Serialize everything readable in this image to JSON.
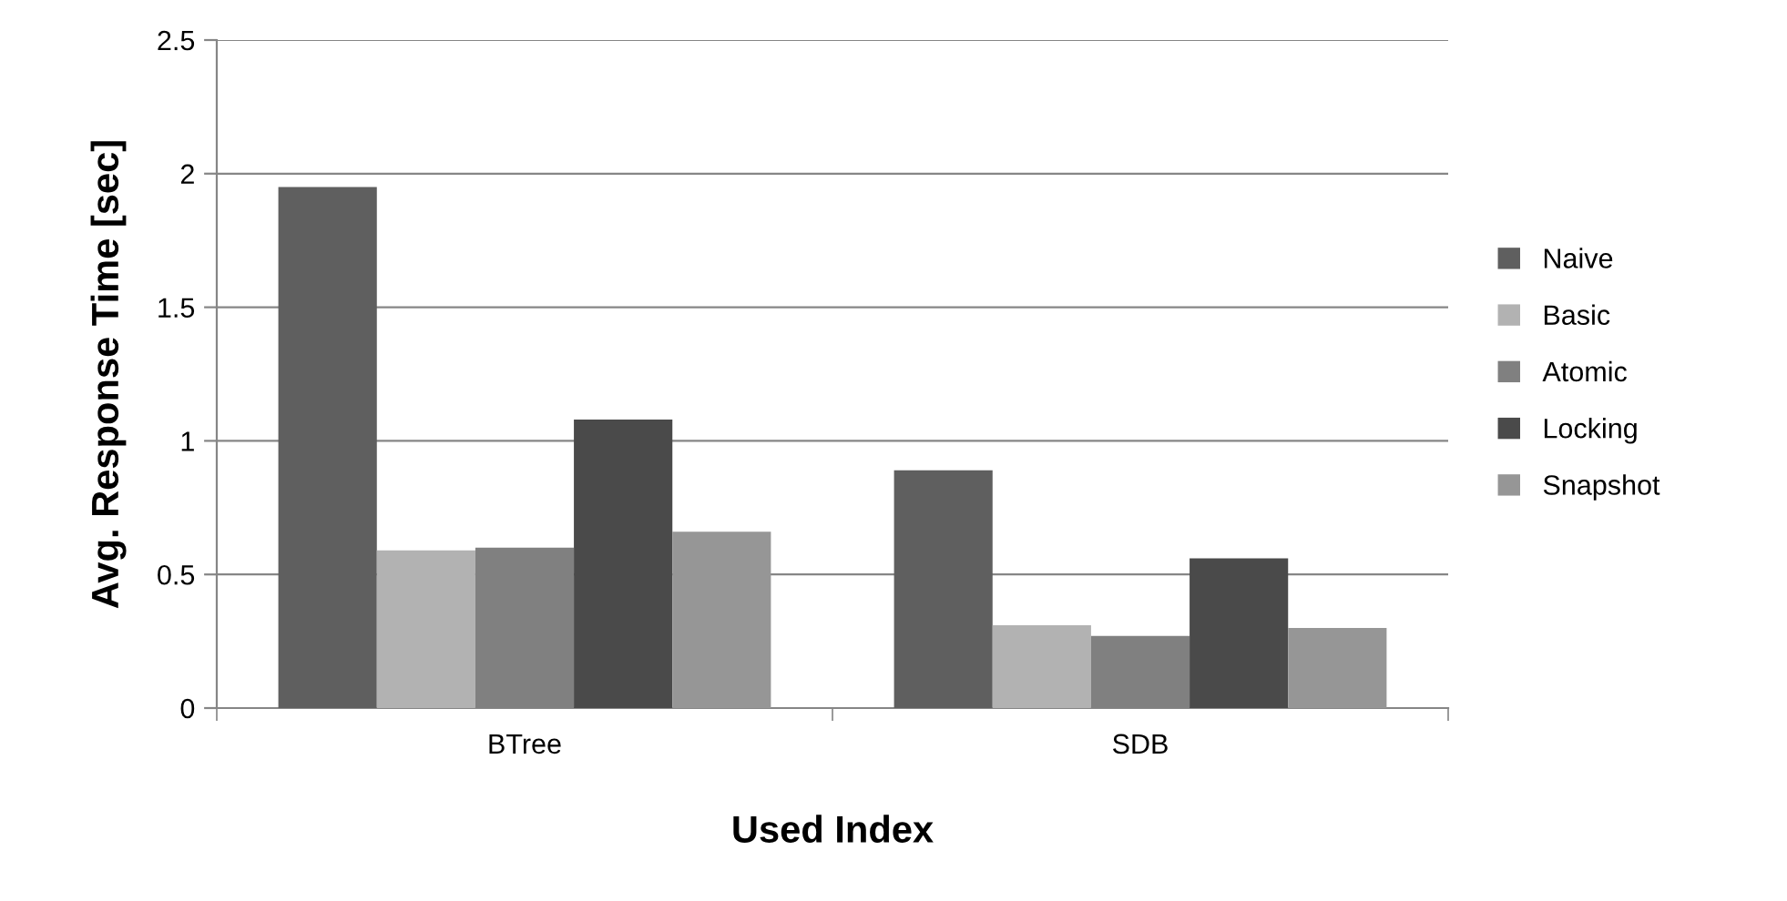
{
  "chart_data": {
    "type": "bar",
    "xlabel": "Used Index",
    "ylabel": "Avg. Response Time [sec]",
    "categories": [
      "BTree",
      "SDB"
    ],
    "series": [
      {
        "name": "Naive",
        "color": "#5f5f5f",
        "values": [
          1.95,
          0.89
        ]
      },
      {
        "name": "Basic",
        "color": "#b2b2b2",
        "values": [
          0.59,
          0.31
        ]
      },
      {
        "name": "Atomic",
        "color": "#808080",
        "values": [
          0.6,
          0.27
        ]
      },
      {
        "name": "Locking",
        "color": "#4a4a4a",
        "values": [
          1.08,
          0.56
        ]
      },
      {
        "name": "Snapshot",
        "color": "#969696",
        "values": [
          0.66,
          0.3
        ]
      }
    ],
    "ylim": [
      0,
      2.5
    ],
    "yticks": [
      0,
      0.5,
      1,
      1.5,
      2,
      2.5
    ],
    "grid": "y",
    "legend": "right"
  }
}
